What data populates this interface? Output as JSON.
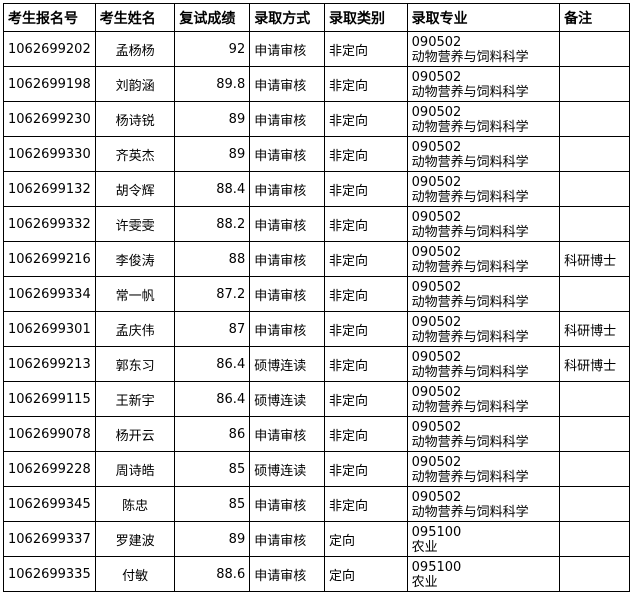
{
  "headers": [
    "考生报名号",
    "考生姓名",
    "复试成绩",
    "录取方式",
    "录取类别",
    "录取专业",
    "备注"
  ],
  "rows": [
    {
      "id": "1062699202",
      "name": "孟杨杨",
      "score": "92",
      "method": "申请审核",
      "type": "非定向",
      "major_code": "090502",
      "major_name": "动物营养与饲料科学",
      "note": ""
    },
    {
      "id": "1062699198",
      "name": "刘韵涵",
      "score": "89.8",
      "method": "申请审核",
      "type": "非定向",
      "major_code": "090502",
      "major_name": "动物营养与饲料科学",
      "note": ""
    },
    {
      "id": "1062699230",
      "name": "杨诗锐",
      "score": "89",
      "method": "申请审核",
      "type": "非定向",
      "major_code": "090502",
      "major_name": "动物营养与饲料科学",
      "note": ""
    },
    {
      "id": "1062699330",
      "name": "齐英杰",
      "score": "89",
      "method": "申请审核",
      "type": "非定向",
      "major_code": "090502",
      "major_name": "动物营养与饲料科学",
      "note": ""
    },
    {
      "id": "1062699132",
      "name": "胡令辉",
      "score": "88.4",
      "method": "申请审核",
      "type": "非定向",
      "major_code": "090502",
      "major_name": "动物营养与饲料科学",
      "note": ""
    },
    {
      "id": "1062699332",
      "name": "许雯雯",
      "score": "88.2",
      "method": "申请审核",
      "type": "非定向",
      "major_code": "090502",
      "major_name": "动物营养与饲料科学",
      "note": ""
    },
    {
      "id": "1062699216",
      "name": "李俊涛",
      "score": "88",
      "method": "申请审核",
      "type": "非定向",
      "major_code": "090502",
      "major_name": "动物营养与饲料科学",
      "note": "科研博士"
    },
    {
      "id": "1062699334",
      "name": "常一帆",
      "score": "87.2",
      "method": "申请审核",
      "type": "非定向",
      "major_code": "090502",
      "major_name": "动物营养与饲料科学",
      "note": ""
    },
    {
      "id": "1062699301",
      "name": "孟庆伟",
      "score": "87",
      "method": "申请审核",
      "type": "非定向",
      "major_code": "090502",
      "major_name": "动物营养与饲料科学",
      "note": "科研博士"
    },
    {
      "id": "1062699213",
      "name": "郭东习",
      "score": "86.4",
      "method": "硕博连读",
      "type": "非定向",
      "major_code": "090502",
      "major_name": "动物营养与饲料科学",
      "note": "科研博士"
    },
    {
      "id": "1062699115",
      "name": "王新宇",
      "score": "86.4",
      "method": "硕博连读",
      "type": "非定向",
      "major_code": "090502",
      "major_name": "动物营养与饲料科学",
      "note": ""
    },
    {
      "id": "1062699078",
      "name": "杨开云",
      "score": "86",
      "method": "申请审核",
      "type": "非定向",
      "major_code": "090502",
      "major_name": "动物营养与饲料科学",
      "note": ""
    },
    {
      "id": "1062699228",
      "name": "周诗皓",
      "score": "85",
      "method": "硕博连读",
      "type": "非定向",
      "major_code": "090502",
      "major_name": "动物营养与饲料科学",
      "note": ""
    },
    {
      "id": "1062699345",
      "name": "陈忠",
      "score": "85",
      "method": "申请审核",
      "type": "非定向",
      "major_code": "090502",
      "major_name": "动物营养与饲料科学",
      "note": ""
    },
    {
      "id": "1062699337",
      "name": "罗建波",
      "score": "89",
      "method": "申请审核",
      "type": "定向",
      "major_code": "095100",
      "major_name": "农业",
      "note": ""
    },
    {
      "id": "1062699335",
      "name": "付敏",
      "score": "88.6",
      "method": "申请审核",
      "type": "定向",
      "major_code": "095100",
      "major_name": "农业",
      "note": ""
    }
  ]
}
